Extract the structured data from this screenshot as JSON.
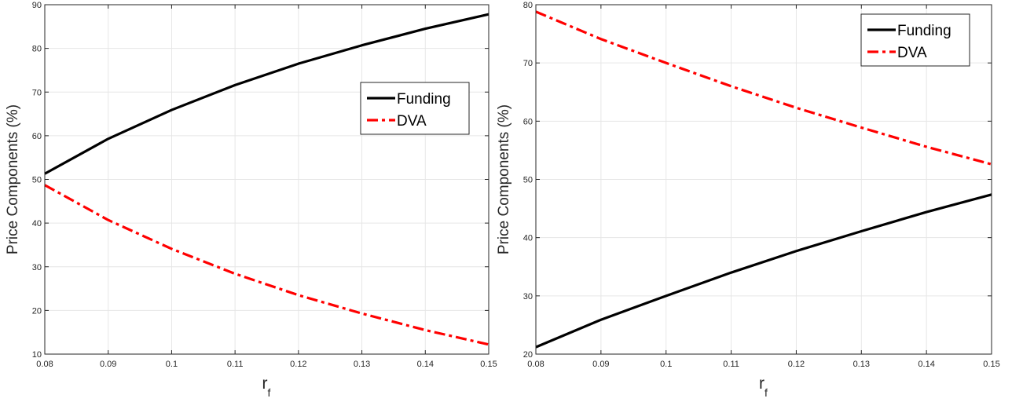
{
  "chart_data": [
    {
      "type": "line",
      "ylabel": "Price Components (%)",
      "xlabel": "r",
      "xlabel_subscript": "f",
      "xlim": [
        0.08,
        0.15
      ],
      "ylim": [
        10,
        90
      ],
      "xticks": [
        0.08,
        0.09,
        0.1,
        0.11,
        0.12,
        0.13,
        0.14,
        0.15
      ],
      "xtick_labels": [
        "0.08",
        "0.09",
        "0.1",
        "0.11",
        "0.12",
        "0.13",
        "0.14",
        "0.15"
      ],
      "yticks": [
        10,
        20,
        30,
        40,
        50,
        60,
        70,
        80,
        90
      ],
      "ytick_labels": [
        "10",
        "20",
        "30",
        "40",
        "50",
        "60",
        "70",
        "80",
        "90"
      ],
      "grid": true,
      "legend_position": "center-right",
      "x": [
        0.08,
        0.09,
        0.1,
        0.11,
        0.12,
        0.13,
        0.14,
        0.15
      ],
      "series": [
        {
          "name": "Funding",
          "color": "#000000",
          "style": "solid",
          "values": [
            51.3,
            59.3,
            65.9,
            71.6,
            76.5,
            80.7,
            84.5,
            87.8
          ]
        },
        {
          "name": "DVA",
          "color": "#ff0000",
          "style": "dashdot",
          "values": [
            48.7,
            40.7,
            34.1,
            28.4,
            23.5,
            19.3,
            15.5,
            12.2
          ]
        }
      ]
    },
    {
      "type": "line",
      "ylabel": "Price Components (%)",
      "xlabel": "r",
      "xlabel_subscript": "f",
      "xlim": [
        0.08,
        0.15
      ],
      "ylim": [
        20,
        80
      ],
      "xticks": [
        0.08,
        0.09,
        0.1,
        0.11,
        0.12,
        0.13,
        0.14,
        0.15
      ],
      "xtick_labels": [
        "0.08",
        "0.09",
        "0.1",
        "0.11",
        "0.12",
        "0.13",
        "0.14",
        "0.15"
      ],
      "yticks": [
        20,
        30,
        40,
        50,
        60,
        70,
        80
      ],
      "ytick_labels": [
        "20",
        "30",
        "40",
        "50",
        "60",
        "70",
        "80"
      ],
      "grid": true,
      "legend_position": "top-right",
      "x": [
        0.08,
        0.09,
        0.1,
        0.11,
        0.12,
        0.13,
        0.14,
        0.15
      ],
      "series": [
        {
          "name": "Funding",
          "color": "#000000",
          "style": "solid",
          "values": [
            21.2,
            25.9,
            30.0,
            34.0,
            37.7,
            41.1,
            44.4,
            47.4
          ]
        },
        {
          "name": "DVA",
          "color": "#ff0000",
          "style": "dashdot",
          "values": [
            78.8,
            74.1,
            70.0,
            66.0,
            62.3,
            58.9,
            55.6,
            52.6
          ]
        }
      ]
    }
  ]
}
